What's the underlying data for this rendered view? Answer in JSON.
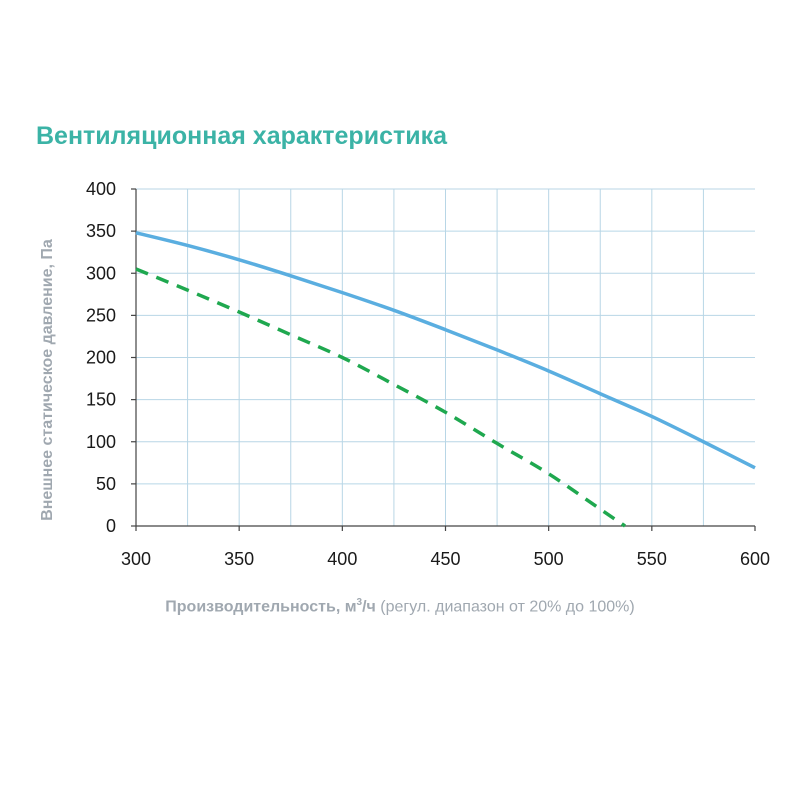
{
  "chart_data": {
    "type": "line",
    "title": "Вентиляционная характеристика",
    "xlabel": {
      "bold": "Производительность, м",
      "sup": "3",
      "bold_end": "/ч",
      "normal": " (регул. диапазон от 20% до 100%)"
    },
    "ylabel": "Внешнее статическое давление, Па",
    "xlim": [
      300,
      600
    ],
    "ylim": [
      0,
      400
    ],
    "xticks": [
      300,
      350,
      400,
      450,
      500,
      550,
      600
    ],
    "yticks": [
      0,
      50,
      100,
      150,
      200,
      250,
      300,
      350,
      400
    ],
    "grid": true,
    "series": [
      {
        "style": "solid",
        "color": "#5aaee0",
        "x": [
          300,
          325,
          350,
          375,
          400,
          425,
          450,
          475,
          500,
          525,
          550,
          575,
          600
        ],
        "y": [
          348,
          333,
          316,
          297,
          277,
          256,
          233,
          209,
          184,
          157,
          130,
          100,
          69
        ]
      },
      {
        "style": "dashed",
        "color": "#1fa84f",
        "x": [
          300,
          325,
          350,
          375,
          400,
          425,
          450,
          475,
          500,
          525,
          537
        ],
        "y": [
          305,
          280,
          254,
          227,
          200,
          168,
          135,
          98,
          62,
          20,
          0
        ]
      }
    ]
  }
}
